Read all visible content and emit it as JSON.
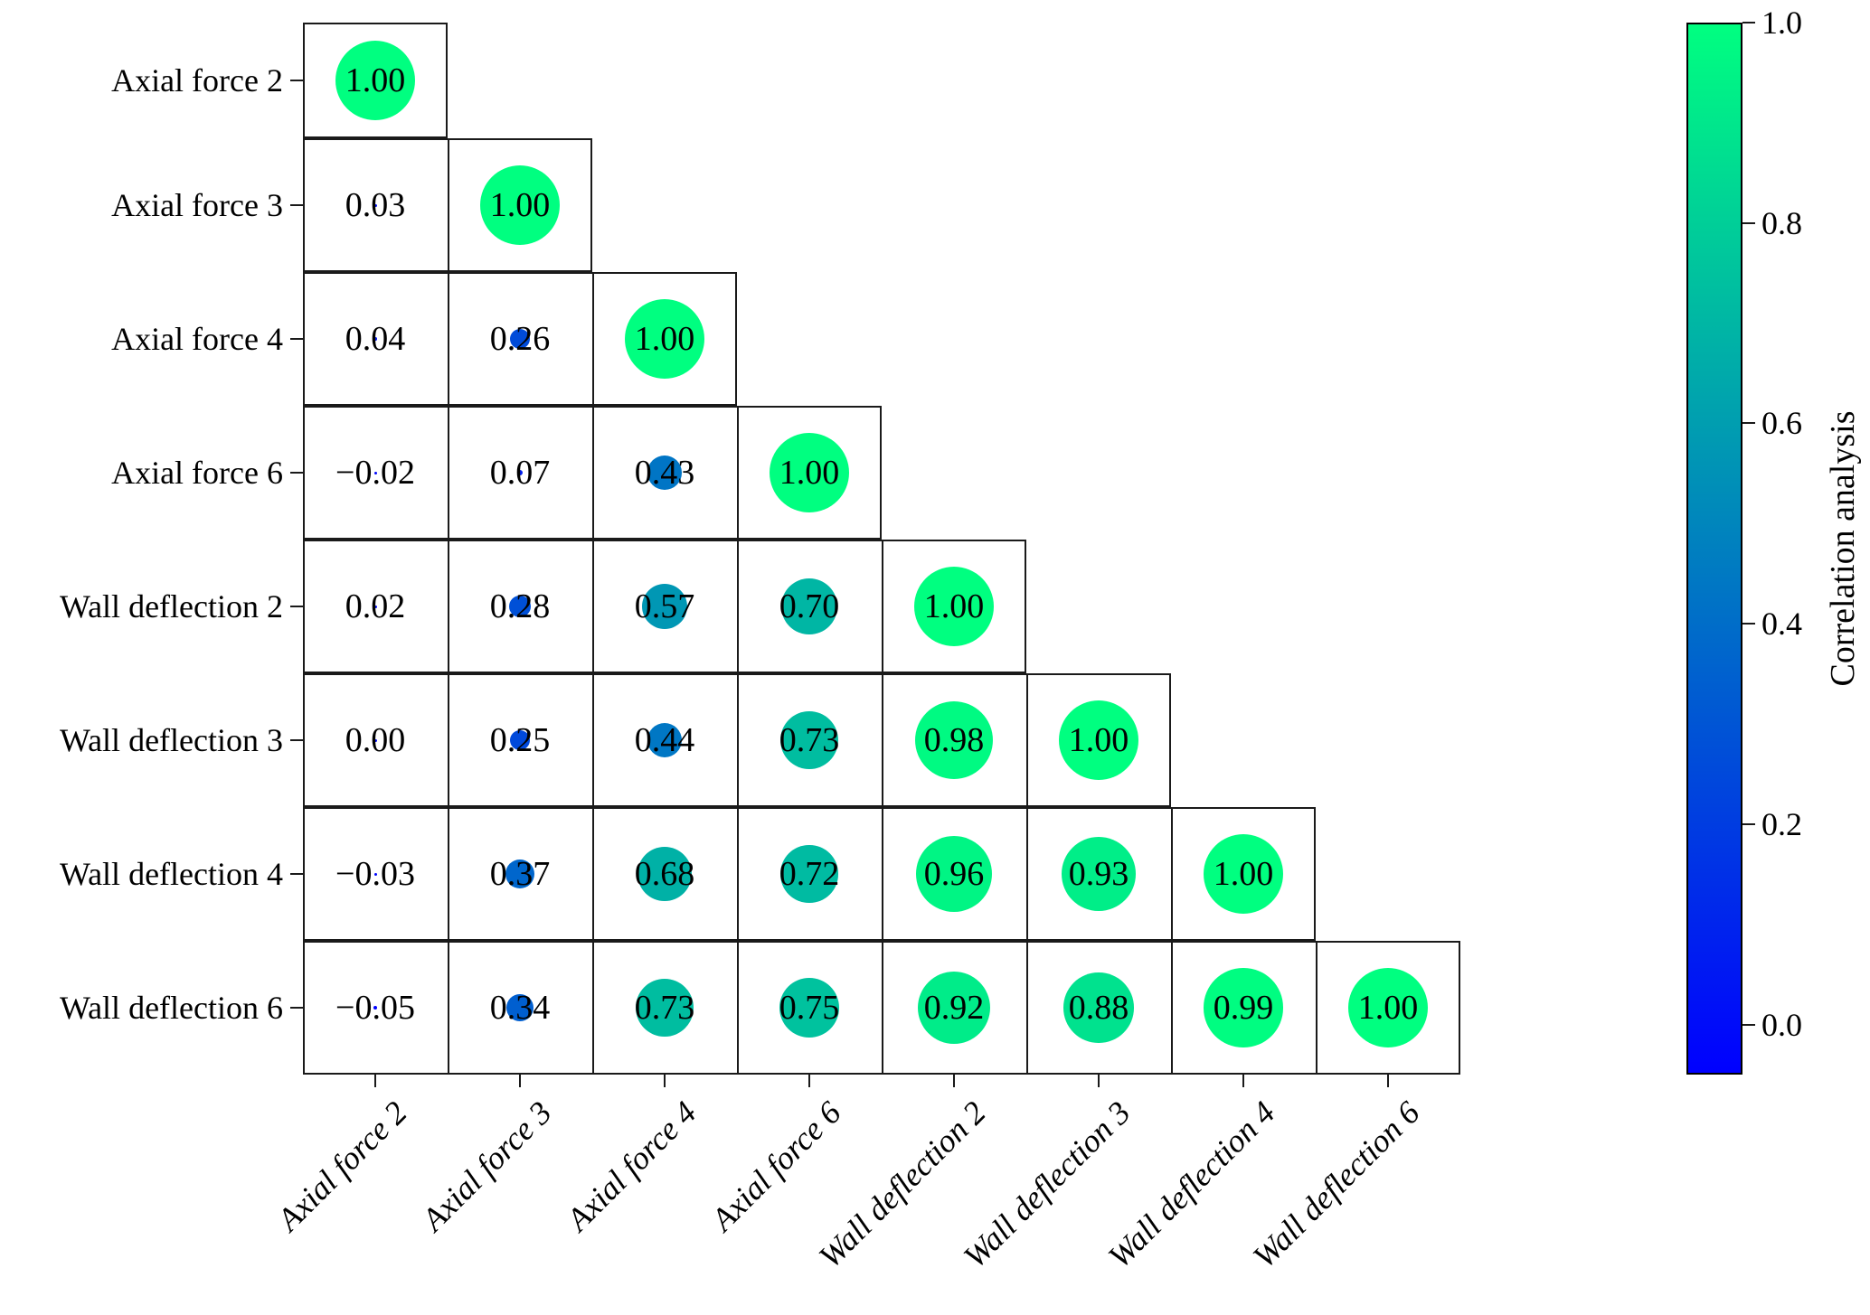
{
  "chart_data": {
    "type": "heatmap",
    "subtype": "correlation-bubble-matrix",
    "title": "",
    "categories": [
      "Axial force 2",
      "Axial force 3",
      "Axial force 4",
      "Axial force 6",
      "Wall deflection 2",
      "Wall deflection 3",
      "Wall deflection 4",
      "Wall deflection 6"
    ],
    "x_tick_labels": [
      "Axial force 2",
      "Axial force 3",
      "Axial force 4",
      "Axial force 6",
      "Wall deflection 2",
      "Wall deflection 3",
      "Wall deflection 4",
      "Wall deflection 6"
    ],
    "y_tick_labels": [
      "Axial force 2",
      "Axial force 3",
      "Axial force 4",
      "Axial force 6",
      "Wall deflection 2",
      "Wall deflection 3",
      "Wall deflection 4",
      "Wall deflection 6"
    ],
    "matrix_lower_triangle": [
      [
        1.0
      ],
      [
        0.03,
        1.0
      ],
      [
        0.04,
        0.26,
        1.0
      ],
      [
        -0.02,
        0.07,
        0.43,
        1.0
      ],
      [
        0.02,
        0.28,
        0.57,
        0.7,
        1.0
      ],
      [
        0.0,
        0.25,
        0.44,
        0.73,
        0.98,
        1.0
      ],
      [
        -0.03,
        0.37,
        0.68,
        0.72,
        0.96,
        0.93,
        1.0
      ],
      [
        -0.05,
        0.34,
        0.73,
        0.75,
        0.92,
        0.88,
        0.99,
        1.0
      ]
    ],
    "value_format": "two-decimals",
    "colormap": "winter",
    "vmin": -0.05,
    "vmax": 1.0,
    "colorbar_label": "Correlation analysis",
    "colorbar_ticks": [
      1.0,
      0.8,
      0.6,
      0.4,
      0.2,
      0.0
    ],
    "colorbar_tick_labels": [
      "1.0",
      "0.8",
      "0.6",
      "0.4",
      "0.2",
      "0.0"
    ],
    "legend_position": "right-colorbar",
    "grid": "cell-borders",
    "colors": {
      "bubble_max": "#00FF80",
      "bubble_min": "#0000FF",
      "line": "#1a1a1a",
      "text": "#000000",
      "background": "#ffffff"
    }
  }
}
